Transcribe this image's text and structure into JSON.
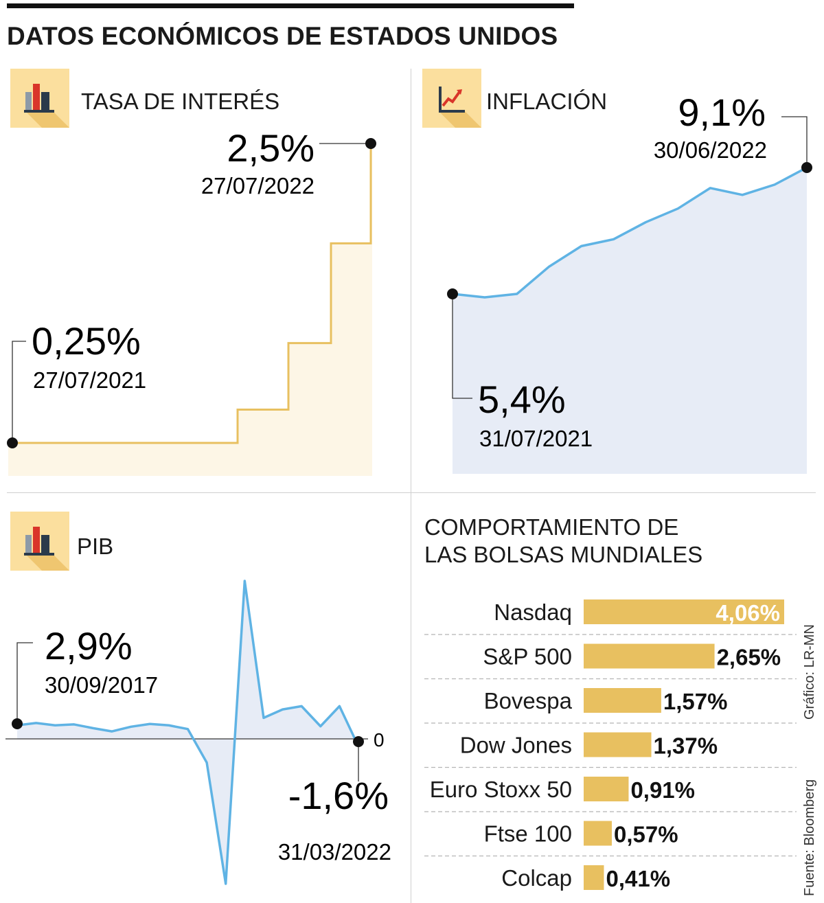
{
  "title": "DATOS ECONÓMICOS DE ESTADOS UNIDOS",
  "panels": {
    "tasa": {
      "title": "TASA DE INTERÉS",
      "start": {
        "value": "0,25%",
        "date": "27/07/2021"
      },
      "end": {
        "value": "2,5%",
        "date": "27/07/2022"
      }
    },
    "inflacion": {
      "title": "INFLACIÓN",
      "start": {
        "value": "5,4%",
        "date": "31/07/2021"
      },
      "end": {
        "value": "9,1%",
        "date": "30/06/2022"
      }
    },
    "pib": {
      "title": "PIB",
      "start": {
        "value": "2,9%",
        "date": "30/09/2017"
      },
      "end": {
        "value": "-1,6%",
        "date": "31/03/2022"
      },
      "zero_label": "0"
    },
    "bolsas": {
      "title_line1": "COMPORTAMIENTO DE",
      "title_line2": "LAS BOLSAS MUNDIALES"
    }
  },
  "credit": "Gráfico: LR-MN",
  "source": "Fuente: Bloomberg",
  "colors": {
    "gold": "#e8c060",
    "gold_fill": "#fdf6e6",
    "blue": "#5fb3e4",
    "blue_fill": "#e7ecf6",
    "icon_bg": "#fbdf9e",
    "bar": "#e8c060",
    "text": "#1a1a1a"
  },
  "icons": [
    "bar-chart-icon",
    "line-chart-icon",
    "bar-chart-icon"
  ],
  "chart_data": [
    {
      "type": "line",
      "title": "TASA DE INTERÉS",
      "step": true,
      "x": [
        "27/07/2021",
        "16/03/2022",
        "04/05/2022",
        "15/06/2022",
        "27/07/2022"
      ],
      "values": [
        0.25,
        0.5,
        1.0,
        1.75,
        2.5
      ],
      "ylim": [
        0.25,
        2.5
      ]
    },
    {
      "type": "area",
      "title": "INFLACIÓN",
      "x": [
        "31/07/2021",
        "31/08/2021",
        "30/09/2021",
        "31/10/2021",
        "30/11/2021",
        "31/12/2021",
        "31/01/2022",
        "28/02/2022",
        "31/03/2022",
        "30/04/2022",
        "31/05/2022",
        "30/06/2022"
      ],
      "values": [
        5.4,
        5.3,
        5.4,
        6.2,
        6.8,
        7.0,
        7.5,
        7.9,
        8.5,
        8.3,
        8.6,
        9.1
      ],
      "ylim": [
        5.4,
        9.1
      ]
    },
    {
      "type": "area",
      "title": "PIB",
      "values": [
        2.9,
        3.4,
        2.9,
        3.1,
        2.3,
        1.6,
        2.6,
        3.2,
        2.9,
        2.1,
        -5.1,
        -31.2,
        33.8,
        4.5,
        6.3,
        7.0,
        2.7,
        7.0,
        -1.6
      ],
      "ylim": [
        -31.2,
        33.8
      ],
      "zero": 0
    },
    {
      "type": "bar",
      "title": "COMPORTAMIENTO DE LAS BOLSAS MUNDIALES",
      "categories": [
        "Nasdaq",
        "S&P 500",
        "Bovespa",
        "Dow Jones",
        "Euro Stoxx 50",
        "Ftse 100",
        "Colcap"
      ],
      "values": [
        4.06,
        2.65,
        1.57,
        1.37,
        0.91,
        0.57,
        0.41
      ],
      "labels": [
        "4,06%",
        "2,65%",
        "1,57%",
        "1,37%",
        "0,91%",
        "0,57%",
        "0,41%"
      ],
      "orientation": "horizontal"
    }
  ]
}
